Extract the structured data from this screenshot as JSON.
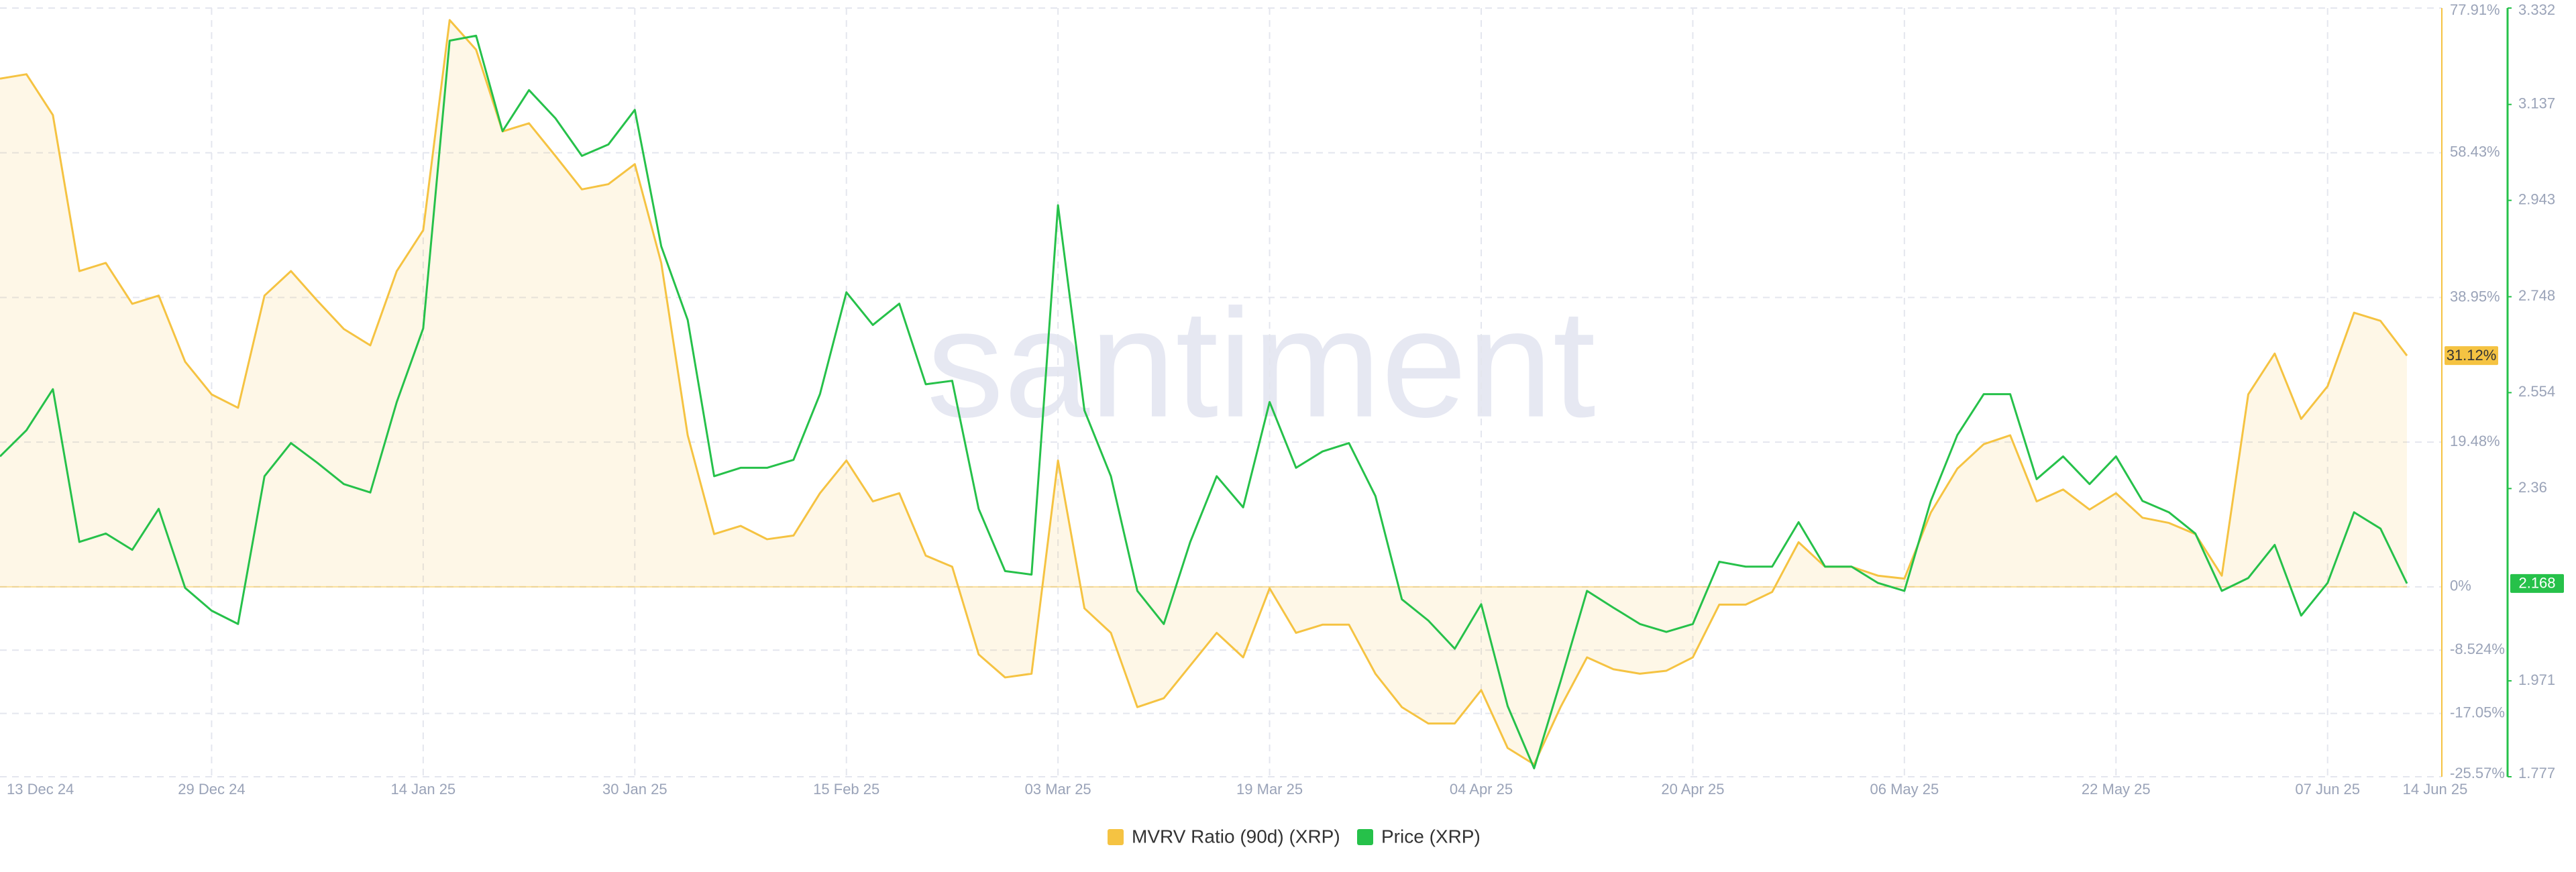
{
  "chart_data": {
    "type": "line",
    "watermark": "santiment",
    "categories": [
      "13 Dec 24",
      null,
      null,
      null,
      null,
      null,
      null,
      null,
      "29 Dec 24",
      null,
      null,
      null,
      null,
      null,
      null,
      null,
      "14 Jan 25",
      null,
      null,
      null,
      null,
      null,
      null,
      null,
      "30 Jan 25",
      null,
      null,
      null,
      null,
      null,
      null,
      null,
      "15 Feb 25",
      null,
      null,
      null,
      null,
      null,
      null,
      null,
      "03 Mar 25",
      null,
      null,
      null,
      null,
      null,
      null,
      null,
      "19 Mar 25",
      null,
      null,
      null,
      null,
      null,
      null,
      null,
      "04 Apr 25",
      null,
      null,
      null,
      null,
      null,
      null,
      null,
      "20 Apr 25",
      null,
      null,
      null,
      null,
      null,
      null,
      null,
      "06 May 25",
      null,
      null,
      null,
      null,
      null,
      null,
      null,
      "22 May 25",
      null,
      null,
      null,
      null,
      null,
      null,
      null,
      "07 Jun 25",
      null,
      null,
      "14 Jun 25"
    ],
    "series": [
      {
        "name": "MVRV Ratio (90d) (XRP)",
        "color": "#f5c342",
        "axis": "y",
        "last_label": "31.12%",
        "values": [
          68.4,
          69.0,
          63.5,
          42.5,
          43.6,
          38.1,
          39.2,
          30.3,
          25.9,
          24.1,
          39.2,
          42.5,
          38.5,
          34.7,
          32.5,
          42.5,
          48.0,
          76.3,
          72.3,
          61.3,
          62.4,
          58.0,
          53.5,
          54.2,
          56.9,
          43.6,
          20.4,
          7.1,
          8.2,
          6.4,
          6.9,
          12.6,
          17.0,
          11.5,
          12.6,
          4.2,
          2.7,
          -9.1,
          -12.2,
          -11.7,
          17.0,
          -2.9,
          -6.2,
          -16.2,
          -15.0,
          -10.6,
          -6.2,
          -9.5,
          -0.2,
          -6.2,
          -5.1,
          -5.1,
          -11.7,
          -16.2,
          -18.4,
          -18.4,
          -13.9,
          -21.7,
          -23.9,
          -16.2,
          -9.5,
          -11.1,
          -11.7,
          -11.3,
          -9.5,
          -2.4,
          -2.4,
          -0.7,
          6.0,
          2.7,
          2.7,
          1.5,
          1.1,
          10.0,
          15.9,
          19.2,
          20.4,
          11.5,
          13.1,
          10.4,
          12.6,
          9.3,
          8.6,
          7.1,
          1.5,
          25.9,
          31.4,
          22.6,
          27.0,
          36.9,
          35.8,
          31.12
        ]
      },
      {
        "name": "Price (XRP)",
        "color": "#26c14a",
        "axis": "y2",
        "last_label": "2.168",
        "values": [
          2.425,
          2.478,
          2.561,
          2.252,
          2.269,
          2.236,
          2.319,
          2.159,
          2.113,
          2.086,
          2.385,
          2.452,
          2.412,
          2.369,
          2.352,
          2.535,
          2.684,
          3.266,
          3.276,
          3.083,
          3.166,
          3.109,
          3.033,
          3.056,
          3.126,
          2.85,
          2.701,
          2.385,
          2.402,
          2.402,
          2.418,
          2.551,
          2.757,
          2.691,
          2.734,
          2.571,
          2.578,
          2.319,
          2.193,
          2.186,
          2.933,
          2.518,
          2.385,
          2.153,
          2.086,
          2.252,
          2.385,
          2.322,
          2.535,
          2.402,
          2.435,
          2.452,
          2.345,
          2.136,
          2.093,
          2.036,
          2.126,
          1.92,
          1.794,
          1.97,
          2.153,
          2.119,
          2.086,
          2.07,
          2.086,
          2.212,
          2.202,
          2.202,
          2.292,
          2.202,
          2.202,
          2.169,
          2.153,
          2.335,
          2.468,
          2.551,
          2.551,
          2.379,
          2.425,
          2.369,
          2.425,
          2.335,
          2.312,
          2.269,
          2.153,
          2.179,
          2.246,
          2.103,
          2.169,
          2.312,
          2.279,
          2.168
        ]
      }
    ],
    "ylim": [
      -25.57,
      77.91
    ],
    "yticks": [
      {
        "value": 77.91,
        "label": "77.91%"
      },
      {
        "value": 58.43,
        "label": "58.43%"
      },
      {
        "value": 38.95,
        "label": "38.95%"
      },
      {
        "value": 19.48,
        "label": "19.48%"
      },
      {
        "value": 0,
        "label": "0%"
      },
      {
        "value": -8.524,
        "label": "-8.524%"
      },
      {
        "value": -17.05,
        "label": "-17.05%"
      },
      {
        "value": -25.57,
        "label": "-25.57%"
      }
    ],
    "y2lim": [
      1.777,
      3.332
    ],
    "y2ticks": [
      3.332,
      3.137,
      2.943,
      2.748,
      2.554,
      2.36,
      1.971,
      1.777
    ],
    "grid": true,
    "legend": "bottom"
  }
}
